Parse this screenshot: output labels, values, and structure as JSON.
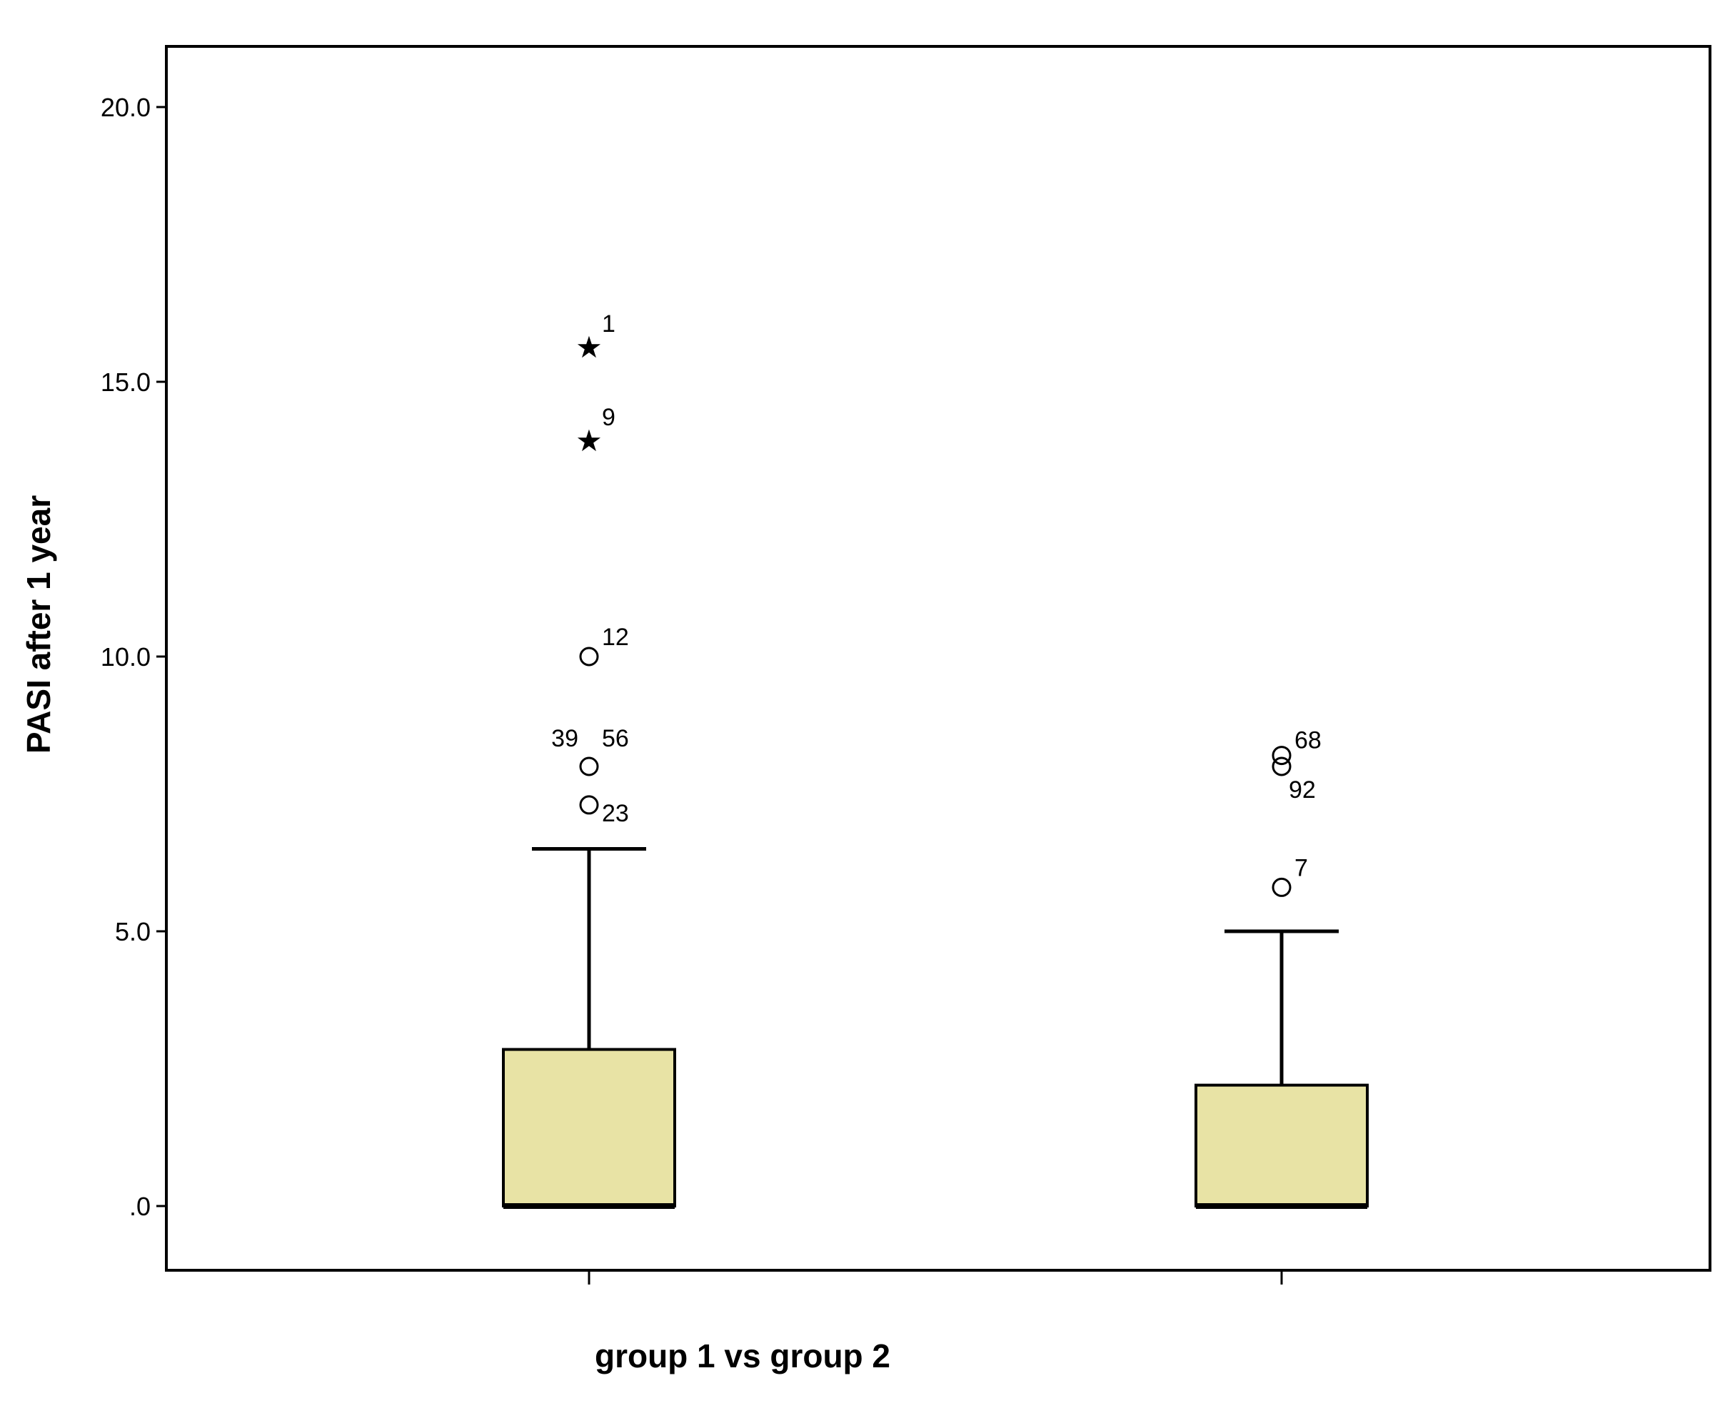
{
  "chart_data": {
    "type": "boxplot",
    "title": "",
    "xlabel": "group 1 vs group 2",
    "ylabel": "PASI after 1 year",
    "ylim": [
      -1.1,
      21.1
    ],
    "yticks": [
      0,
      5,
      10,
      15,
      20
    ],
    "ytick_labels": [
      ".0",
      "5.0",
      "10.0",
      "15.0",
      "20.0"
    ],
    "categories": [
      "",
      ""
    ],
    "box_color": "#e8e3a5",
    "grid": false,
    "boxes": [
      {
        "min": 0.0,
        "q1": 0.0,
        "median": 0.0,
        "q3": 2.85,
        "max": 6.5,
        "outliers": [
          {
            "value": 15.7,
            "label": "1",
            "marker": "star"
          },
          {
            "value": 14.0,
            "label": "9",
            "marker": "star"
          },
          {
            "value": 10.0,
            "label": "12",
            "marker": "circle"
          },
          {
            "value": 8.0,
            "label": "39",
            "marker": "circle"
          },
          {
            "value": 8.0,
            "label": "56",
            "marker": "circle"
          },
          {
            "value": 7.3,
            "label": "23",
            "marker": "circle"
          }
        ]
      },
      {
        "min": 0.0,
        "q1": 0.0,
        "median": 0.0,
        "q3": 2.2,
        "max": 5.0,
        "outliers": [
          {
            "value": 8.2,
            "label": "68",
            "marker": "circle"
          },
          {
            "value": 8.0,
            "label": "92",
            "marker": "circle"
          },
          {
            "value": 5.8,
            "label": "7",
            "marker": "circle"
          }
        ]
      }
    ]
  }
}
